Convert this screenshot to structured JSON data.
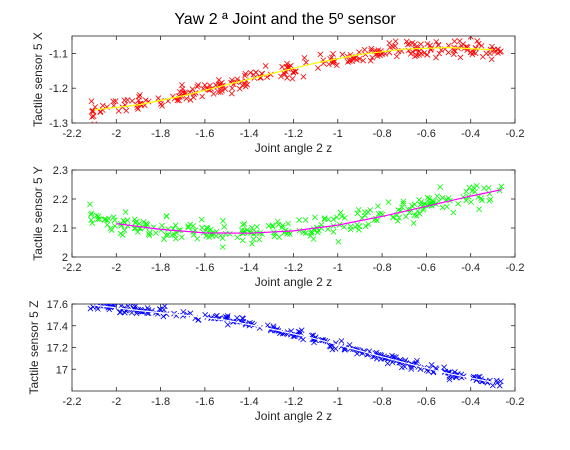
{
  "figure": {
    "title": "Yaw 2 ª Joint and the 5º sensor"
  },
  "chart_data": [
    {
      "type": "scatter",
      "xlabel": "Joint angle 2 z",
      "ylabel": "Tactile sensor 5 X",
      "xlim": [
        -2.2,
        -0.2
      ],
      "ylim": [
        -1.3,
        -1.05
      ],
      "xticks": [
        -2.2,
        -2,
        -1.8,
        -1.6,
        -1.4,
        -1.2,
        -1,
        -0.8,
        -0.6,
        -0.4,
        -0.2
      ],
      "xtick_labels": [
        "-2.2",
        "-2",
        "-1.8",
        "-1.6",
        "-1.4",
        "-1.2",
        "-1",
        "-0.8",
        "-0.6",
        "-0.4",
        "-0.2"
      ],
      "yticks": [
        -1.3,
        -1.2,
        -1.1
      ],
      "ytick_labels": [
        "-1.3",
        "-1.2",
        "-1.1"
      ],
      "marker_color": "#ff0000",
      "fit_color": "#ffff00",
      "fit": [
        [
          -2.1,
          -1.262
        ],
        [
          -1.9,
          -1.248
        ],
        [
          -1.7,
          -1.222
        ],
        [
          -1.5,
          -1.19
        ],
        [
          -1.3,
          -1.158
        ],
        [
          -1.1,
          -1.128
        ],
        [
          -0.9,
          -1.103
        ],
        [
          -0.7,
          -1.088
        ],
        [
          -0.5,
          -1.083
        ],
        [
          -0.3,
          -1.09
        ]
      ],
      "scatter": {
        "x_range": [
          -2.12,
          -0.26
        ],
        "spread": 0.012,
        "count": 260
      }
    },
    {
      "type": "scatter",
      "xlabel": "Joint angle 2 z",
      "ylabel": "Tactile sensor 5 Y",
      "xlim": [
        -2.2,
        -0.2
      ],
      "ylim": [
        2.0,
        2.3
      ],
      "xticks": [
        -2.2,
        -2,
        -1.8,
        -1.6,
        -1.4,
        -1.2,
        -1,
        -0.8,
        -0.6,
        -0.4,
        -0.2
      ],
      "xtick_labels": [
        "-2.2",
        "-2",
        "-1.8",
        "-1.6",
        "-1.4",
        "-1.2",
        "-1",
        "-0.8",
        "-0.6",
        "-0.4",
        "-0.2"
      ],
      "yticks": [
        2.0,
        2.1,
        2.2,
        2.3
      ],
      "ytick_labels": [
        "2",
        "2.1",
        "2.2",
        "2.3"
      ],
      "marker_color": "#00ff00",
      "fit_color": "#ff00ff",
      "fit": [
        [
          -2.0,
          2.115
        ],
        [
          -1.8,
          2.095
        ],
        [
          -1.6,
          2.083
        ],
        [
          -1.4,
          2.082
        ],
        [
          -1.2,
          2.09
        ],
        [
          -1.0,
          2.11
        ],
        [
          -0.8,
          2.14
        ],
        [
          -0.6,
          2.175
        ],
        [
          -0.4,
          2.21
        ],
        [
          -0.26,
          2.232
        ]
      ],
      "scatter": {
        "x_range": [
          -2.12,
          -0.26
        ],
        "spread": 0.02,
        "count": 260
      }
    },
    {
      "type": "scatter",
      "xlabel": "Joint angle 2 z",
      "ylabel": "Tactile sensor 5 Z",
      "xlim": [
        -2.2,
        -0.2
      ],
      "ylim": [
        16.8,
        17.6
      ],
      "xticks": [
        -2.2,
        -2,
        -1.8,
        -1.6,
        -1.4,
        -1.2,
        -1,
        -0.8,
        -0.6,
        -0.4,
        -0.2
      ],
      "xtick_labels": [
        "-2.2",
        "-2",
        "-1.8",
        "-1.6",
        "-1.4",
        "-1.2",
        "-1",
        "-0.8",
        "-0.6",
        "-0.4",
        "-0.2"
      ],
      "yticks": [
        17.0,
        17.2,
        17.4,
        17.6
      ],
      "ytick_labels": [
        "17",
        "17.2",
        "17.4",
        "17.6"
      ],
      "marker_color": "#0000ff",
      "fit_color": "#ffffff",
      "fit": [
        [
          -2.1,
          17.59
        ],
        [
          -1.9,
          17.54
        ],
        [
          -1.7,
          17.5
        ],
        [
          -1.5,
          17.45
        ],
        [
          -1.3,
          17.37
        ],
        [
          -1.1,
          17.28
        ],
        [
          -0.9,
          17.17
        ],
        [
          -0.7,
          17.06
        ],
        [
          -0.5,
          16.96
        ],
        [
          -0.3,
          16.88
        ]
      ],
      "scatter": {
        "x_range": [
          -2.12,
          -0.26
        ],
        "spread": 0.02,
        "count": 260
      }
    }
  ]
}
